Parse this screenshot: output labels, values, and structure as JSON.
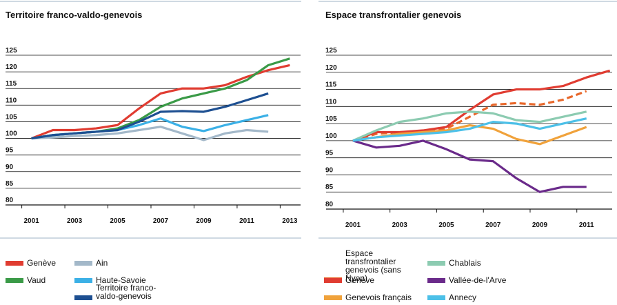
{
  "chart_data": [
    {
      "type": "line",
      "title": "Territoire franco-valdo-genevois",
      "x": [
        2001,
        2002,
        2003,
        2004,
        2005,
        2006,
        2007,
        2008,
        2009,
        2010,
        2011,
        2012,
        2013
      ],
      "xlim": [
        2000.5,
        2013.5
      ],
      "xticks": [
        2001,
        2003,
        2005,
        2007,
        2009,
        2011,
        2013
      ],
      "ylim": [
        80,
        125
      ],
      "yticks": [
        80,
        85,
        90,
        95,
        100,
        105,
        110,
        115,
        120,
        125
      ],
      "grid": true,
      "series": [
        {
          "name": "Genève",
          "color": "#e03c31",
          "values": [
            100,
            102.5,
            102.5,
            103,
            104,
            109,
            113.5,
            115,
            115,
            116,
            118.5,
            120.5,
            122
          ]
        },
        {
          "name": "Vaud",
          "color": "#3a9a47",
          "values": [
            100,
            101,
            101.5,
            102,
            103,
            105.5,
            109.5,
            112,
            113.5,
            115,
            117.5,
            122,
            124
          ]
        },
        {
          "name": "Ain",
          "color": "#a3b8c9",
          "values": [
            100,
            100.3,
            100.7,
            101,
            101.5,
            102.5,
            103.5,
            101.5,
            99.5,
            101.5,
            102.5,
            102,
            null
          ]
        },
        {
          "name": "Haute-Savoie",
          "color": "#3bb0e6",
          "values": [
            100,
            101,
            101.5,
            102,
            102.5,
            104,
            106,
            103.5,
            102.2,
            104,
            105.5,
            107,
            null
          ]
        },
        {
          "name": "Territoire franco-valdo-genevois",
          "color": "#1d4f91",
          "values": [
            100,
            101,
            101.5,
            102,
            102.5,
            105,
            108,
            108.2,
            108,
            109.5,
            111.5,
            113.5,
            null
          ]
        }
      ]
    },
    {
      "type": "line",
      "title": "Espace transfrontalier genevois",
      "x": [
        2001,
        2002,
        2003,
        2004,
        2005,
        2006,
        2007,
        2008,
        2009,
        2010,
        2011,
        2012
      ],
      "xlim": [
        2000.5,
        2012.1
      ],
      "xticks": [
        2001,
        2003,
        2005,
        2007,
        2009,
        2011
      ],
      "ylim": [
        80,
        125
      ],
      "yticks": [
        80,
        85,
        90,
        95,
        100,
        105,
        110,
        115,
        120,
        125
      ],
      "grid": true,
      "series": [
        {
          "name": "Espace transfrontalier genevois (sans Nyon)",
          "color": "#e8672a",
          "linestyle": "dashed",
          "values": [
            100,
            102,
            102.5,
            102.5,
            103.5,
            107,
            110.5,
            111,
            110.5,
            112,
            114.5,
            null
          ]
        },
        {
          "name": "Genève",
          "color": "#e03c31",
          "values": [
            100,
            102.5,
            102.5,
            103,
            104,
            109,
            113.5,
            115,
            115,
            116,
            118.5,
            120.5
          ]
        },
        {
          "name": "Genevois français",
          "color": "#f0a23b",
          "values": [
            100,
            101,
            102,
            102.5,
            103,
            104.5,
            103.5,
            100.5,
            99,
            101.5,
            104,
            null
          ]
        },
        {
          "name": "Chablais",
          "color": "#8ccbb1",
          "values": [
            100,
            103,
            105.5,
            106.5,
            108,
            108.5,
            108,
            106,
            105.5,
            107,
            108.5,
            null
          ]
        },
        {
          "name": "Vallée-de-l'Arve",
          "color": "#6a2a8a",
          "values": [
            100,
            98,
            98.5,
            100,
            97.5,
            94.5,
            94,
            89,
            85,
            86.5,
            86.5,
            null
          ]
        },
        {
          "name": "Annecy",
          "color": "#4cc0e8",
          "values": [
            100,
            101,
            101.5,
            102,
            102.5,
            103.5,
            105.5,
            105,
            103.5,
            105,
            106.5,
            null
          ]
        }
      ]
    }
  ]
}
